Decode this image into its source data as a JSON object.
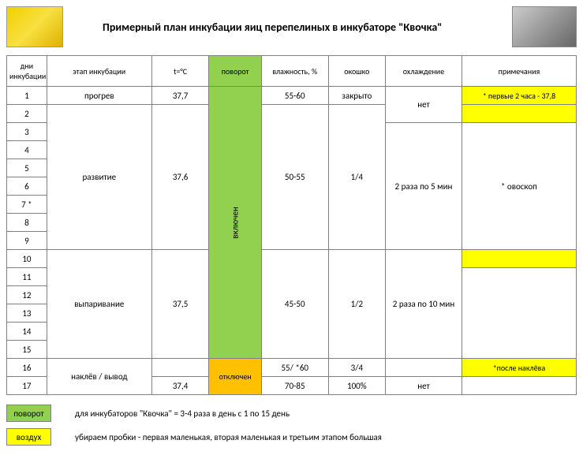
{
  "doc": {
    "title": "Примерный план инкубации яиц перепелиных в инкубаторе \"Квочка\""
  },
  "colors": {
    "green": "#92d050",
    "orange": "#ffc000",
    "yellow": "#ffff00",
    "border": "#808080",
    "pale_yellow": "#ffffcc"
  },
  "table": {
    "headers": {
      "day": "дни инкубации",
      "stage": "этап инкубации",
      "temp": "t=°С",
      "turn": "поворот",
      "humidity": "влажность, %",
      "window": "окошко",
      "cooling": "охлаждение",
      "notes": "примечания"
    },
    "days": [
      "1",
      "2",
      "3",
      "4",
      "5",
      "6",
      "7 *",
      "8",
      "9",
      "10",
      "11",
      "12",
      "13",
      "14",
      "15",
      "16",
      "17"
    ],
    "stages": {
      "r1": "прогрев",
      "r2_9": "развитие",
      "r10_15": "выпаривание",
      "r16_17": "наклёв / вывод"
    },
    "temps": {
      "r1": "37,7",
      "r2_9": "37,6",
      "r10_15": "37,5",
      "r17": "37,4"
    },
    "turn": {
      "on": "включен",
      "off": "отключен"
    },
    "humidity": {
      "r1": "55-60",
      "r2_9": "50-55",
      "r10_15": "45-50",
      "r16": "55/ *60",
      "r17": "70-85"
    },
    "window": {
      "r1": "закрыто",
      "r2_9": "1/4",
      "r10_15": "1/2",
      "r16": "3/4",
      "r17": "100%"
    },
    "cooling": {
      "r1_2": "нет",
      "r3_9": "2 раза по 5 мин",
      "r10_15": "2 раза по 10 мин",
      "r17": "нет"
    },
    "notes": {
      "r1": "* первые 2 часа - 37,8",
      "r7": "* овоскоп",
      "r16": "*после наклёва"
    }
  },
  "legend": {
    "turn_label": "поворот",
    "turn_text": "для инкубаторов \"Квочка\" = 3-4 раза в день с 1 по 15 день",
    "air_label": "воздух",
    "air_text": "убираем пробки - первая маленькая, вторая маленькая и третьим этапом большая"
  }
}
